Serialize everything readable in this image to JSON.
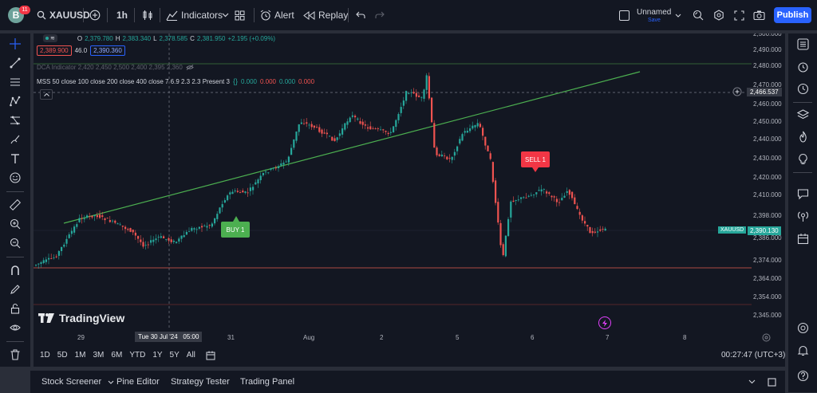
{
  "topbar": {
    "avatar_letter": "B",
    "notification_count": "11",
    "symbol": "XAUUSD",
    "interval": "1h",
    "indicators_label": "Indicators",
    "alert_label": "Alert",
    "replay_label": "Replay",
    "layout_name": "Unnamed",
    "layout_status": "Save",
    "publish_label": "Publish"
  },
  "legend": {
    "ohlc": {
      "o_label": "O",
      "o": "2,379.780",
      "h_label": "H",
      "h": "2,383.340",
      "l_label": "L",
      "l": "2,378.585",
      "c_label": "C",
      "c": "2,381.950",
      "change": "+2.195 (+0.09%)"
    },
    "bid": "2,389.900",
    "spread": "46.0",
    "ask": "2,390.360",
    "dca_line": "DCA Indicator 2,420 2,450 2,500 2,400 2,395 2,360",
    "mss_label": "MSS 50 close 100 close 200 close 400 close 7 6.9 2.3 2.3 Present 3",
    "mss_values": [
      "0.000",
      "0.000",
      "0.000",
      "0.000"
    ]
  },
  "chart": {
    "watermark": "TradingView",
    "buy_label": "BUY 1",
    "sell_label": "SELL 1",
    "crosshair_price": "2,466.537",
    "crosshair_time": "Tue 30 Jul '24   05:00",
    "symbol_tag": "XAUUSD",
    "last_price": "2,390.130",
    "price_ticks": [
      "2,500.000",
      "2,490.000",
      "2,480.000",
      "2,470.000",
      "2,460.000",
      "2,450.000",
      "2,440.000",
      "2,430.000",
      "2,420.000",
      "2,410.000",
      "2,398.000",
      "2,386.000",
      "2,374.000",
      "2,364.000",
      "2,354.000",
      "2,345.000"
    ],
    "time_ticks": [
      "29",
      "31",
      "Aug",
      "2",
      "5",
      "6",
      "7",
      "8"
    ],
    "colors": {
      "up": "#26a69a",
      "down": "#ef5350",
      "trend": "#4caf50",
      "background": "#131722"
    }
  },
  "bottom_bar": {
    "ranges": [
      "1D",
      "5D",
      "1M",
      "3M",
      "6M",
      "YTD",
      "1Y",
      "5Y",
      "All"
    ],
    "clock": "00:27:47 (UTC+3)",
    "panels": [
      "Stock Screener",
      "Pine Editor",
      "Strategy Tester",
      "Trading Panel"
    ]
  }
}
